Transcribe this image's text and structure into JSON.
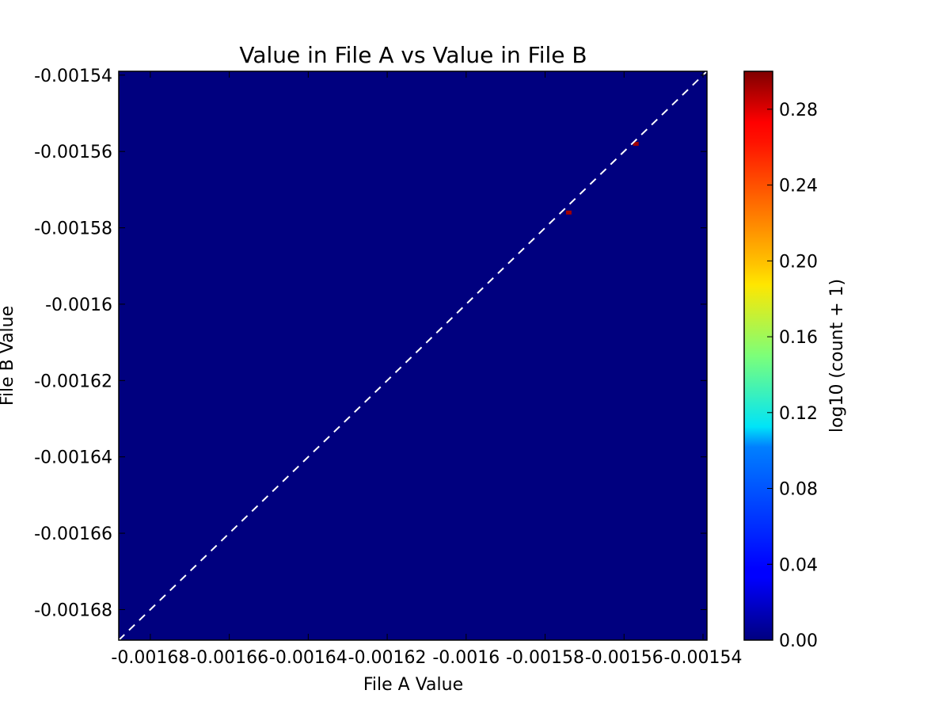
{
  "chart_data": {
    "type": "heatmap",
    "title": "Value in File A vs Value in File B",
    "xlabel": "File A Value",
    "ylabel": "File B Value",
    "xlim": [
      -0.001688,
      -0.001539
    ],
    "ylim": [
      -0.001688,
      -0.001539
    ],
    "x_ticks": [
      {
        "value": -0.00168,
        "label": "-0.00168"
      },
      {
        "value": -0.00166,
        "label": "-0.00166"
      },
      {
        "value": -0.00164,
        "label": "-0.00164"
      },
      {
        "value": -0.00162,
        "label": "-0.00162"
      },
      {
        "value": -0.0016,
        "label": "-0.0016"
      },
      {
        "value": -0.00158,
        "label": "-0.00158"
      },
      {
        "value": -0.00156,
        "label": "-0.00156"
      },
      {
        "value": -0.00154,
        "label": "-0.00154"
      }
    ],
    "y_ticks": [
      {
        "value": -0.00154,
        "label": "-0.00154"
      },
      {
        "value": -0.00156,
        "label": "-0.00156"
      },
      {
        "value": -0.00158,
        "label": "-0.00158"
      },
      {
        "value": -0.0016,
        "label": "-0.0016"
      },
      {
        "value": -0.00162,
        "label": "-0.00162"
      },
      {
        "value": -0.00164,
        "label": "-0.00164"
      },
      {
        "value": -0.00166,
        "label": "-0.00166"
      },
      {
        "value": -0.00168,
        "label": "-0.00168"
      }
    ],
    "background_value": 0.0,
    "cells": [
      {
        "x": -0.001557,
        "y": -0.001558,
        "value": 0.3
      },
      {
        "x": -0.001574,
        "y": -0.001576,
        "value": 0.3
      }
    ],
    "reference_line": {
      "style": "dashed",
      "color": "#ffffff",
      "from": [
        -0.001688,
        -0.001688
      ],
      "to": [
        -0.001539,
        -0.001539
      ]
    },
    "colorbar": {
      "label": "log10 (count + 1)",
      "min": 0.0,
      "max": 0.3,
      "colormap": "jet",
      "ticks": [
        {
          "value": 0.0,
          "label": "0.00"
        },
        {
          "value": 0.04,
          "label": "0.04"
        },
        {
          "value": 0.08,
          "label": "0.08"
        },
        {
          "value": 0.12,
          "label": "0.12"
        },
        {
          "value": 0.16,
          "label": "0.16"
        },
        {
          "value": 0.2,
          "label": "0.20"
        },
        {
          "value": 0.24,
          "label": "0.24"
        },
        {
          "value": 0.28,
          "label": "0.28"
        }
      ]
    },
    "grid": false
  },
  "colors": {
    "low": "#00007f",
    "high": "#7f0000",
    "cell": "#a00000",
    "reference_line": "#ffffff",
    "axis": "#000000"
  }
}
